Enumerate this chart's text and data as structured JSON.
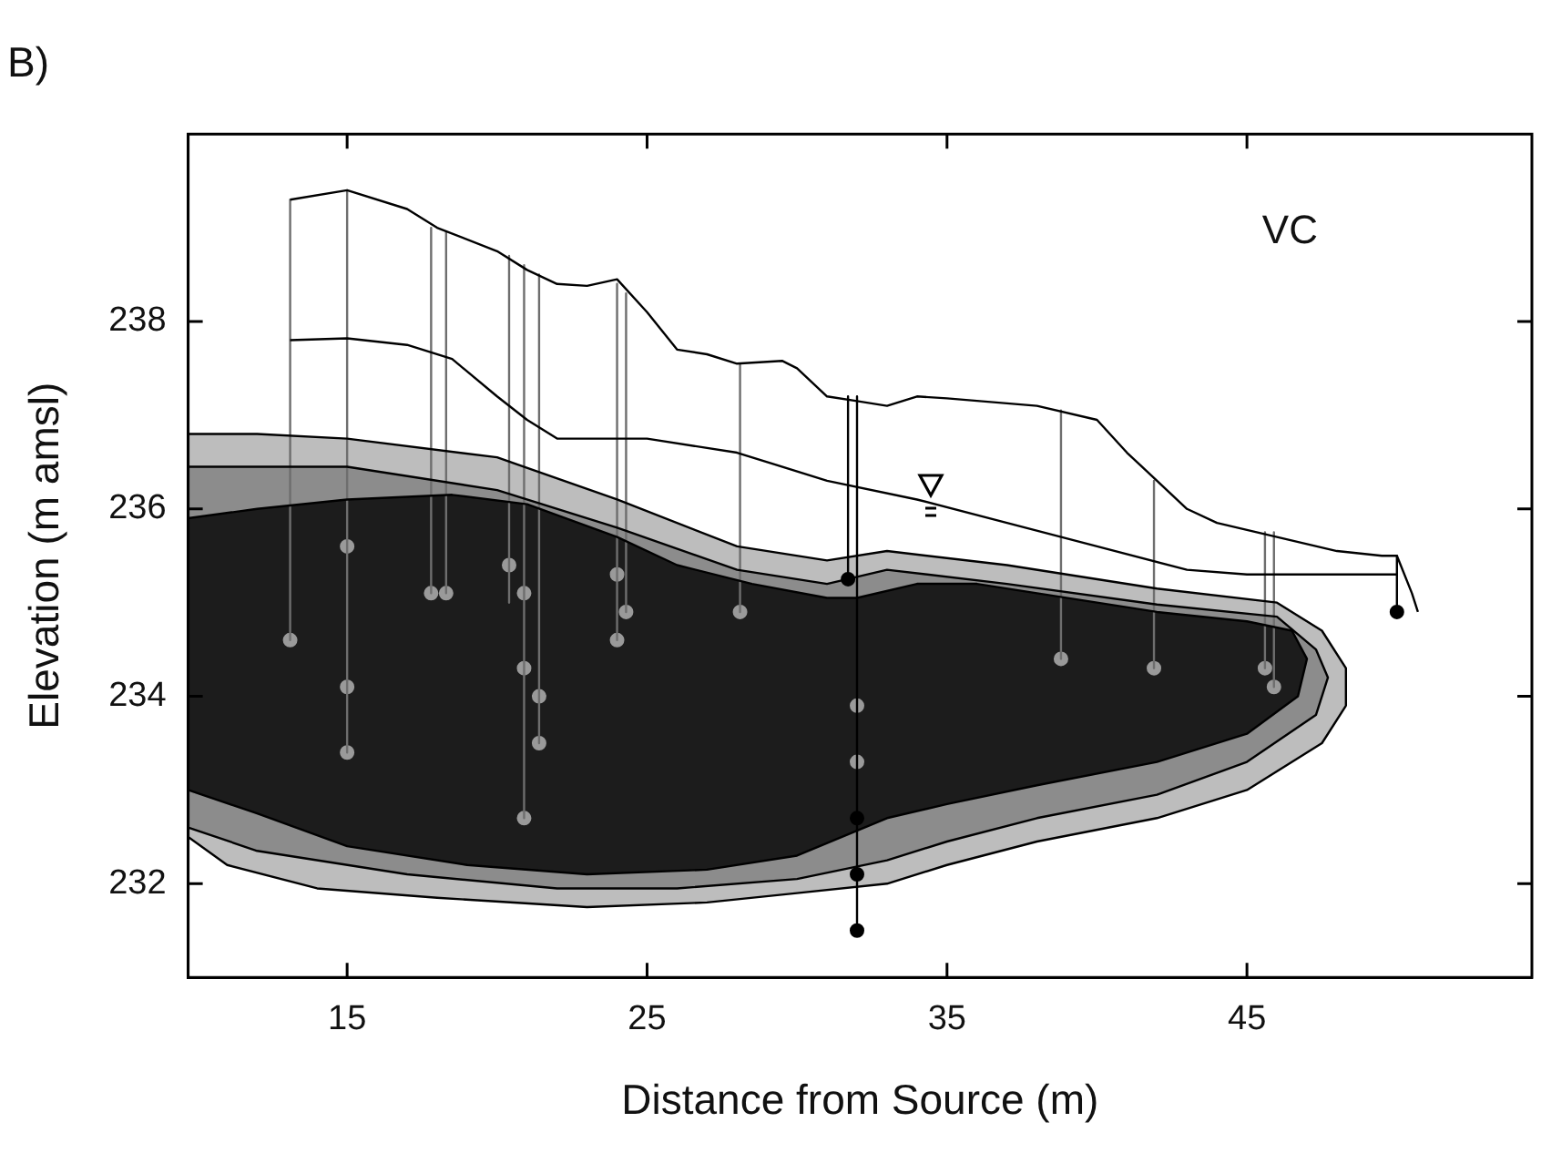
{
  "chart_data": {
    "type": "line",
    "title": "B)",
    "xlabel": "Distance from Source (m)",
    "ylabel": "Elevation (m amsl)",
    "xlim": [
      9.7,
      54.5
    ],
    "ylim": [
      231,
      240
    ],
    "xticks": [
      15,
      25,
      35,
      45
    ],
    "yticks": [
      232,
      234,
      236,
      238
    ],
    "grid": false,
    "legend": false,
    "annotations": [
      "VC"
    ],
    "series": [
      {
        "type": "area",
        "color": "#bdbdbd",
        "x": [
          9.7,
          12,
          15,
          20,
          24,
          28,
          31,
          33,
          37,
          42,
          46,
          47.5,
          48.3,
          48.3,
          47.5,
          45,
          42,
          38,
          35,
          33,
          30,
          27,
          23,
          18,
          14,
          11,
          9.7
        ],
        "values": [
          236.8,
          236.8,
          236.75,
          236.55,
          236.1,
          235.6,
          235.45,
          235.55,
          235.4,
          235.15,
          235.0,
          234.7,
          234.3,
          233.9,
          233.5,
          233.0,
          232.7,
          232.45,
          232.2,
          232.0,
          231.9,
          231.8,
          231.75,
          231.85,
          231.95,
          232.2,
          232.5
        ]
      },
      {
        "type": "area",
        "color": "#8c8c8c",
        "x": [
          9.7,
          15,
          20,
          24,
          28,
          31,
          33,
          37,
          42,
          46,
          47.3,
          47.7,
          47.3,
          45,
          42,
          38,
          35,
          33,
          30,
          26,
          22,
          17,
          12,
          9.7
        ],
        "values": [
          236.45,
          236.45,
          236.2,
          235.8,
          235.35,
          235.2,
          235.35,
          235.2,
          234.98,
          234.85,
          234.5,
          234.2,
          233.8,
          233.3,
          232.95,
          232.7,
          232.45,
          232.25,
          232.05,
          231.95,
          231.95,
          232.1,
          232.35,
          232.6
        ]
      },
      {
        "type": "area",
        "color": "#1c1c1c",
        "x": [
          9.7,
          12,
          15,
          18.5,
          21,
          24,
          26,
          28.5,
          31,
          32,
          34,
          36,
          38,
          42,
          45,
          46.5,
          47,
          46.7,
          45,
          42,
          38,
          35,
          33,
          30,
          27,
          23,
          19,
          15,
          12,
          9.7
        ],
        "values": [
          235.9,
          236.0,
          236.1,
          236.15,
          236.05,
          235.7,
          235.4,
          235.2,
          235.05,
          235.05,
          235.2,
          235.2,
          235.1,
          234.9,
          234.8,
          234.7,
          234.4,
          234.0,
          233.6,
          233.3,
          233.05,
          232.85,
          232.7,
          232.3,
          232.15,
          232.1,
          232.2,
          232.4,
          232.75,
          233.0
        ]
      },
      {
        "color": "#000000",
        "x": [
          13.1,
          15,
          17,
          18,
          20,
          21,
          22,
          23,
          24,
          25,
          26,
          27,
          28,
          29.5,
          30,
          31,
          32,
          33,
          34,
          35,
          38,
          40,
          41,
          42,
          43,
          44,
          46,
          48,
          49.5,
          50,
          50.5,
          50.7
        ],
        "values": [
          239.3,
          239.4,
          239.2,
          239.0,
          238.75,
          238.55,
          238.4,
          238.38,
          238.45,
          238.1,
          237.7,
          237.65,
          237.55,
          237.58,
          237.5,
          237.2,
          237.15,
          237.1,
          237.2,
          237.18,
          237.1,
          236.95,
          236.6,
          236.3,
          236.0,
          235.85,
          235.7,
          235.55,
          235.5,
          235.5,
          235.1,
          234.9
        ]
      },
      {
        "color": "#000000",
        "x": [
          13.1,
          15,
          17,
          18.5,
          20,
          21,
          22,
          24,
          25,
          28,
          31,
          34,
          37,
          40,
          43,
          45,
          50
        ],
        "values": [
          237.8,
          237.82,
          237.75,
          237.6,
          237.2,
          236.95,
          236.75,
          236.75,
          236.75,
          236.6,
          236.3,
          236.1,
          235.85,
          235.6,
          235.35,
          235.3,
          235.3
        ]
      },
      {
        "color": "#6e6e6e",
        "x": [
          13.1,
          13.1
        ],
        "values": [
          239.3,
          234.6
        ]
      },
      {
        "color": "#6e6e6e",
        "x": [
          15,
          15
        ],
        "values": [
          239.4,
          233.4
        ]
      },
      {
        "color": "#6e6e6e",
        "x": [
          17.8,
          17.8
        ],
        "values": [
          239.0,
          235.1
        ]
      },
      {
        "color": "#6e6e6e",
        "x": [
          18.3,
          18.3
        ],
        "values": [
          238.95,
          235.1
        ]
      },
      {
        "color": "#6e6e6e",
        "x": [
          20.4,
          20.4
        ],
        "values": [
          238.7,
          235.0
        ]
      },
      {
        "color": "#6e6e6e",
        "x": [
          20.9,
          20.9
        ],
        "values": [
          238.6,
          232.7
        ]
      },
      {
        "color": "#6e6e6e",
        "x": [
          21.4,
          21.4
        ],
        "values": [
          238.5,
          233.5
        ]
      },
      {
        "color": "#6e6e6e",
        "x": [
          24.0,
          24.0
        ],
        "values": [
          238.4,
          234.6
        ]
      },
      {
        "color": "#6e6e6e",
        "x": [
          24.3,
          24.3
        ],
        "values": [
          238.3,
          234.9
        ]
      },
      {
        "color": "#6e6e6e",
        "x": [
          28.1,
          28.1
        ],
        "values": [
          237.55,
          234.9
        ]
      },
      {
        "color": "#000000",
        "x": [
          31.7,
          31.7
        ],
        "values": [
          237.2,
          235.25
        ]
      },
      {
        "color": "#000000",
        "x": [
          32.0,
          32.0
        ],
        "values": [
          237.2,
          231.5
        ]
      },
      {
        "color": "#6e6e6e",
        "x": [
          38.8,
          38.8
        ],
        "values": [
          237.05,
          234.4
        ]
      },
      {
        "color": "#6e6e6e",
        "x": [
          41.9,
          41.9
        ],
        "values": [
          236.3,
          234.3
        ]
      },
      {
        "color": "#6e6e6e",
        "x": [
          45.6,
          45.6
        ],
        "values": [
          235.75,
          234.3
        ]
      },
      {
        "color": "#6e6e6e",
        "x": [
          45.9,
          45.9
        ],
        "values": [
          235.75,
          234.1
        ]
      },
      {
        "color": "#000000",
        "x": [
          50,
          50
        ],
        "values": [
          235.5,
          234.9
        ]
      },
      {
        "type": "scatter",
        "marker": "circle",
        "color": "#9a9a9a",
        "x": [
          13.1,
          15,
          15,
          15,
          17.8,
          18.3,
          20.4,
          20.9,
          20.9,
          20.9,
          21.4,
          21.4,
          24.0,
          24.0,
          24.3,
          28.1,
          32.0,
          32.0,
          38.8,
          41.9,
          45.6,
          45.9
        ],
        "values": [
          234.6,
          235.6,
          234.1,
          233.4,
          235.1,
          235.1,
          235.4,
          235.1,
          234.3,
          232.7,
          234.0,
          233.5,
          235.3,
          234.6,
          234.9,
          234.9,
          233.9,
          233.3,
          234.4,
          234.3,
          234.3,
          234.1
        ]
      },
      {
        "type": "scatter",
        "marker": "circle",
        "color": "#000000",
        "x": [
          31.7,
          32.0,
          32.0,
          32.0,
          50
        ],
        "values": [
          235.25,
          232.7,
          232.1,
          231.5,
          234.9
        ]
      }
    ]
  }
}
